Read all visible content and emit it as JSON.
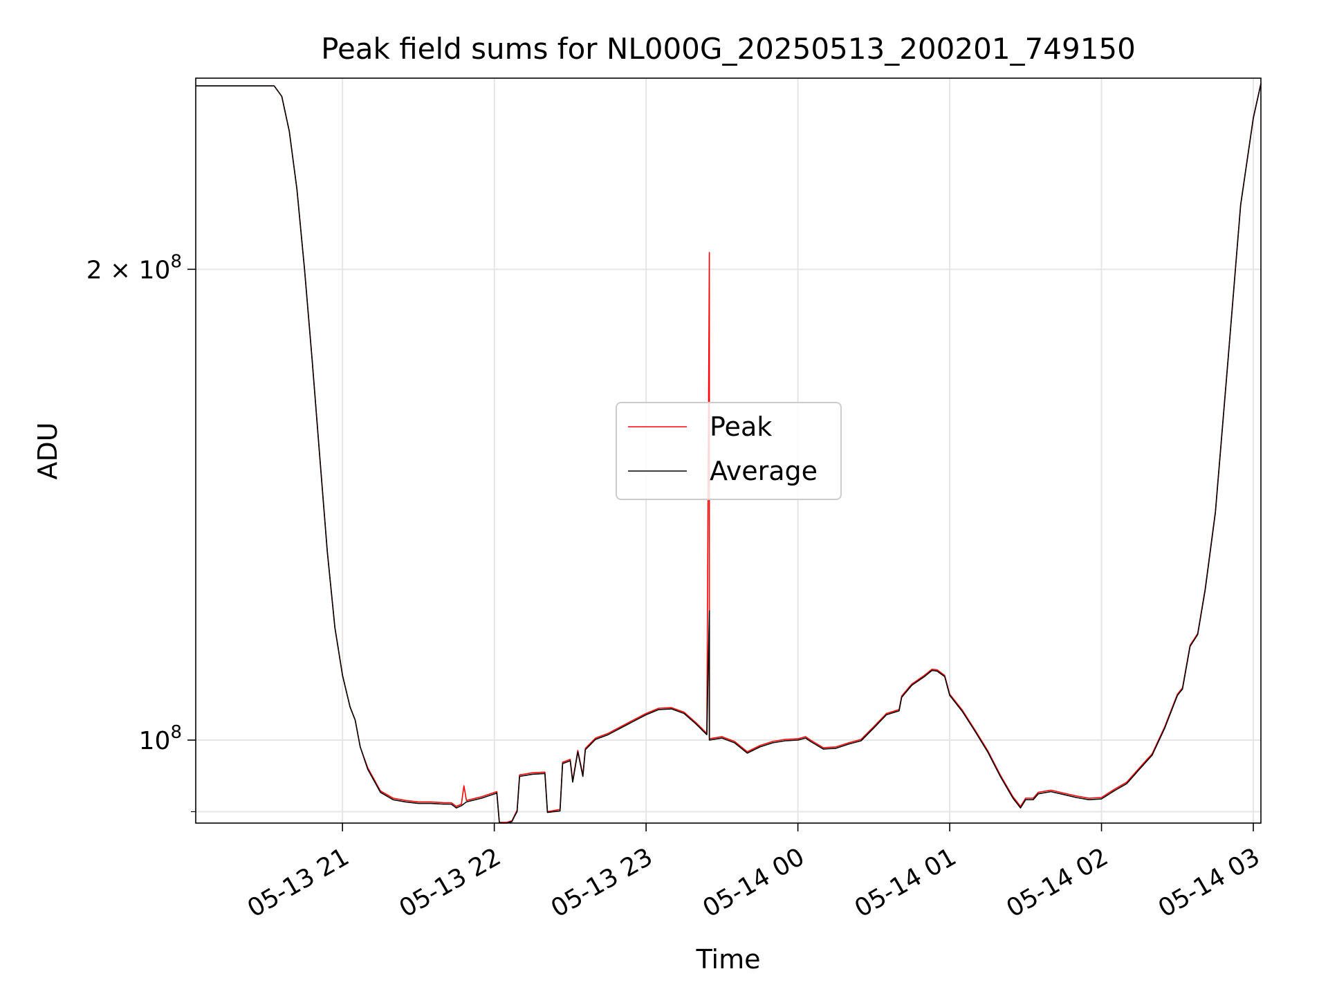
{
  "chart_data": {
    "type": "line",
    "title": "Peak field sums for NL000G_20250513_200201_749150",
    "xlabel": "Time",
    "ylabel": "ADU",
    "yscale": "log",
    "xlim": [
      "05-13 20:02",
      "05-14 03:03"
    ],
    "ylim": [
      88500000,
      265000000
    ],
    "grid": true,
    "legend_position": "center",
    "x_ticks": [
      {
        "t": "05-13 21:00",
        "label": "05-13 21"
      },
      {
        "t": "05-13 22:00",
        "label": "05-13 22"
      },
      {
        "t": "05-13 23:00",
        "label": "05-13 23"
      },
      {
        "t": "05-14 00:00",
        "label": "05-14 00"
      },
      {
        "t": "05-14 01:00",
        "label": "05-14 01"
      },
      {
        "t": "05-14 02:00",
        "label": "05-14 02"
      },
      {
        "t": "05-14 03:00",
        "label": "05-14 03"
      }
    ],
    "y_ticks": [
      {
        "value": 100000000,
        "base": "10",
        "exp": "8",
        "coef": ""
      },
      {
        "value": 200000000,
        "base": "10",
        "exp": "8",
        "coef": "2 × "
      }
    ],
    "y_minor_ticks": [
      90000000
    ],
    "series": [
      {
        "name": "Peak",
        "color": "#ff0000",
        "points": [
          [
            "05-13 20:02",
            262000000
          ],
          [
            "05-13 20:33",
            262000000
          ],
          [
            "05-13 20:36",
            258000000
          ],
          [
            "05-13 20:39",
            245000000
          ],
          [
            "05-13 20:42",
            225000000
          ],
          [
            "05-13 20:45",
            200000000
          ],
          [
            "05-13 20:48",
            175000000
          ],
          [
            "05-13 20:51",
            152000000
          ],
          [
            "05-13 20:54",
            132000000
          ],
          [
            "05-13 20:57",
            118000000
          ],
          [
            "05-13 21:00",
            110000000
          ],
          [
            "05-13 21:03",
            105000000
          ],
          [
            "05-13 21:05",
            103000000
          ],
          [
            "05-13 21:07",
            99000000
          ],
          [
            "05-13 21:10",
            96000000
          ],
          [
            "05-13 21:15",
            92800000
          ],
          [
            "05-13 21:20",
            91800000
          ],
          [
            "05-13 21:25",
            91500000
          ],
          [
            "05-13 21:30",
            91300000
          ],
          [
            "05-13 21:35",
            91300000
          ],
          [
            "05-13 21:40",
            91200000
          ],
          [
            "05-13 21:43",
            91200000
          ],
          [
            "05-13 21:45",
            90700000
          ],
          [
            "05-13 21:47",
            91000000
          ],
          [
            "05-13 21:48",
            93500000
          ],
          [
            "05-13 21:49",
            91500000
          ],
          [
            "05-13 21:55",
            92000000
          ],
          [
            "05-13 22:01",
            92700000
          ],
          [
            "05-13 22:02",
            88600000
          ],
          [
            "05-13 22:05",
            88600000
          ],
          [
            "05-13 22:07",
            88800000
          ],
          [
            "05-13 22:08",
            89500000
          ],
          [
            "05-13 22:09",
            90200000
          ],
          [
            "05-13 22:10",
            95000000
          ],
          [
            "05-13 22:15",
            95300000
          ],
          [
            "05-13 22:20",
            95400000
          ],
          [
            "05-13 22:21",
            90000000
          ],
          [
            "05-13 22:26",
            90300000
          ],
          [
            "05-13 22:27",
            96800000
          ],
          [
            "05-13 22:30",
            97200000
          ],
          [
            "05-13 22:31",
            94200000
          ],
          [
            "05-13 22:33",
            98500000
          ],
          [
            "05-13 22:35",
            95000000
          ],
          [
            "05-13 22:36",
            98800000
          ],
          [
            "05-13 22:40",
            100300000
          ],
          [
            "05-13 22:45",
            101000000
          ],
          [
            "05-13 22:50",
            102000000
          ],
          [
            "05-13 22:55",
            103000000
          ],
          [
            "05-13 23:00",
            104000000
          ],
          [
            "05-13 23:05",
            104800000
          ],
          [
            "05-13 23:10",
            104900000
          ],
          [
            "05-13 23:15",
            104200000
          ],
          [
            "05-13 23:20",
            102500000
          ],
          [
            "05-13 23:24",
            101000000
          ],
          [
            "05-13 23:25",
            205000000
          ],
          [
            "05-13 23:25",
            100200000
          ],
          [
            "05-13 23:30",
            100500000
          ],
          [
            "05-13 23:35",
            99800000
          ],
          [
            "05-13 23:40",
            98300000
          ],
          [
            "05-13 23:45",
            99200000
          ],
          [
            "05-13 23:50",
            99800000
          ],
          [
            "05-13 23:55",
            100100000
          ],
          [
            "05-14 00:00",
            100200000
          ],
          [
            "05-14 00:03",
            100500000
          ],
          [
            "05-14 00:05",
            100000000
          ],
          [
            "05-14 00:10",
            98900000
          ],
          [
            "05-14 00:15",
            99000000
          ],
          [
            "05-14 00:20",
            99600000
          ],
          [
            "05-14 00:25",
            100100000
          ],
          [
            "05-14 00:30",
            102000000
          ],
          [
            "05-14 00:35",
            104000000
          ],
          [
            "05-14 00:40",
            104600000
          ],
          [
            "05-14 00:41",
            106700000
          ],
          [
            "05-14 00:45",
            108600000
          ],
          [
            "05-14 00:50",
            110000000
          ],
          [
            "05-14 00:53",
            111000000
          ],
          [
            "05-14 00:55",
            110900000
          ],
          [
            "05-14 00:58",
            110000000
          ],
          [
            "05-14 01:00",
            107000000
          ],
          [
            "05-14 01:05",
            104500000
          ],
          [
            "05-14 01:10",
            101500000
          ],
          [
            "05-14 01:15",
            98500000
          ],
          [
            "05-14 01:20",
            95000000
          ],
          [
            "05-14 01:25",
            92000000
          ],
          [
            "05-14 01:28",
            90700000
          ],
          [
            "05-14 01:30",
            91800000
          ],
          [
            "05-14 01:33",
            91800000
          ],
          [
            "05-14 01:35",
            92600000
          ],
          [
            "05-14 01:40",
            92900000
          ],
          [
            "05-14 01:45",
            92500000
          ],
          [
            "05-14 01:50",
            92100000
          ],
          [
            "05-14 01:55",
            91800000
          ],
          [
            "05-14 02:00",
            91900000
          ],
          [
            "05-14 02:05",
            93000000
          ],
          [
            "05-14 02:10",
            94000000
          ],
          [
            "05-14 02:15",
            96000000
          ],
          [
            "05-14 02:20",
            98000000
          ],
          [
            "05-14 02:25",
            102000000
          ],
          [
            "05-14 02:30",
            107000000
          ],
          [
            "05-14 02:32",
            108000000
          ],
          [
            "05-14 02:35",
            115000000
          ],
          [
            "05-14 02:38",
            117000000
          ],
          [
            "05-14 02:41",
            125000000
          ],
          [
            "05-14 02:45",
            140000000
          ],
          [
            "05-14 02:50",
            175000000
          ],
          [
            "05-14 02:55",
            220000000
          ],
          [
            "05-14 03:00",
            250000000
          ],
          [
            "05-14 03:03",
            263000000
          ]
        ]
      },
      {
        "name": "Average",
        "color": "#000000",
        "points": [
          [
            "05-13 20:02",
            262000000
          ],
          [
            "05-13 20:33",
            262000000
          ],
          [
            "05-13 20:36",
            258000000
          ],
          [
            "05-13 20:39",
            245000000
          ],
          [
            "05-13 20:42",
            225000000
          ],
          [
            "05-13 20:45",
            200000000
          ],
          [
            "05-13 20:48",
            175000000
          ],
          [
            "05-13 20:51",
            152000000
          ],
          [
            "05-13 20:54",
            132000000
          ],
          [
            "05-13 20:57",
            118000000
          ],
          [
            "05-13 21:00",
            110000000
          ],
          [
            "05-13 21:03",
            105000000
          ],
          [
            "05-13 21:05",
            103000000
          ],
          [
            "05-13 21:07",
            99000000
          ],
          [
            "05-13 21:10",
            95800000
          ],
          [
            "05-13 21:15",
            92600000
          ],
          [
            "05-13 21:20",
            91600000
          ],
          [
            "05-13 21:25",
            91300000
          ],
          [
            "05-13 21:30",
            91100000
          ],
          [
            "05-13 21:35",
            91100000
          ],
          [
            "05-13 21:40",
            91000000
          ],
          [
            "05-13 21:43",
            91000000
          ],
          [
            "05-13 21:45",
            90500000
          ],
          [
            "05-13 21:47",
            90800000
          ],
          [
            "05-13 21:49",
            91300000
          ],
          [
            "05-13 21:55",
            91800000
          ],
          [
            "05-13 22:01",
            92500000
          ],
          [
            "05-13 22:02",
            88500000
          ],
          [
            "05-13 22:05",
            88500000
          ],
          [
            "05-13 22:07",
            88700000
          ],
          [
            "05-13 22:08",
            89400000
          ],
          [
            "05-13 22:09",
            90000000
          ],
          [
            "05-13 22:10",
            94800000
          ],
          [
            "05-13 22:15",
            95100000
          ],
          [
            "05-13 22:20",
            95200000
          ],
          [
            "05-13 22:21",
            89900000
          ],
          [
            "05-13 22:26",
            90100000
          ],
          [
            "05-13 22:27",
            96600000
          ],
          [
            "05-13 22:30",
            97000000
          ],
          [
            "05-13 22:31",
            94000000
          ],
          [
            "05-13 22:33",
            98300000
          ],
          [
            "05-13 22:35",
            94800000
          ],
          [
            "05-13 22:36",
            98600000
          ],
          [
            "05-13 22:40",
            100100000
          ],
          [
            "05-13 22:45",
            100800000
          ],
          [
            "05-13 22:50",
            101800000
          ],
          [
            "05-13 22:55",
            102800000
          ],
          [
            "05-13 23:00",
            103800000
          ],
          [
            "05-13 23:05",
            104600000
          ],
          [
            "05-13 23:10",
            104700000
          ],
          [
            "05-13 23:15",
            104000000
          ],
          [
            "05-13 23:20",
            102300000
          ],
          [
            "05-13 23:24",
            100800000
          ],
          [
            "05-13 23:25",
            121000000
          ],
          [
            "05-13 23:25",
            100000000
          ],
          [
            "05-13 23:30",
            100300000
          ],
          [
            "05-13 23:35",
            99600000
          ],
          [
            "05-13 23:40",
            98100000
          ],
          [
            "05-13 23:45",
            99000000
          ],
          [
            "05-13 23:50",
            99600000
          ],
          [
            "05-13 23:55",
            99900000
          ],
          [
            "05-14 00:00",
            100000000
          ],
          [
            "05-14 00:03",
            100300000
          ],
          [
            "05-14 00:05",
            99800000
          ],
          [
            "05-14 00:10",
            98700000
          ],
          [
            "05-14 00:15",
            98800000
          ],
          [
            "05-14 00:20",
            99400000
          ],
          [
            "05-14 00:25",
            99900000
          ],
          [
            "05-14 00:30",
            101800000
          ],
          [
            "05-14 00:35",
            103800000
          ],
          [
            "05-14 00:40",
            104400000
          ],
          [
            "05-14 00:41",
            106500000
          ],
          [
            "05-14 00:45",
            108400000
          ],
          [
            "05-14 00:50",
            109800000
          ],
          [
            "05-14 00:53",
            110800000
          ],
          [
            "05-14 00:55",
            110700000
          ],
          [
            "05-14 00:58",
            109800000
          ],
          [
            "05-14 01:00",
            106800000
          ],
          [
            "05-14 01:05",
            104300000
          ],
          [
            "05-14 01:10",
            101300000
          ],
          [
            "05-14 01:15",
            98300000
          ],
          [
            "05-14 01:20",
            94800000
          ],
          [
            "05-14 01:25",
            91800000
          ],
          [
            "05-14 01:28",
            90500000
          ],
          [
            "05-14 01:30",
            91600000
          ],
          [
            "05-14 01:33",
            91600000
          ],
          [
            "05-14 01:35",
            92400000
          ],
          [
            "05-14 01:40",
            92700000
          ],
          [
            "05-14 01:45",
            92300000
          ],
          [
            "05-14 01:50",
            91900000
          ],
          [
            "05-14 01:55",
            91600000
          ],
          [
            "05-14 02:00",
            91700000
          ],
          [
            "05-14 02:05",
            92800000
          ],
          [
            "05-14 02:10",
            93800000
          ],
          [
            "05-14 02:15",
            95800000
          ],
          [
            "05-14 02:20",
            97800000
          ],
          [
            "05-14 02:25",
            101800000
          ],
          [
            "05-14 02:30",
            106800000
          ],
          [
            "05-14 02:32",
            107800000
          ],
          [
            "05-14 02:35",
            114800000
          ],
          [
            "05-14 02:38",
            116800000
          ],
          [
            "05-14 02:41",
            124800000
          ],
          [
            "05-14 02:45",
            139800000
          ],
          [
            "05-14 02:50",
            174800000
          ],
          [
            "05-14 02:55",
            219800000
          ],
          [
            "05-14 03:00",
            249800000
          ],
          [
            "05-14 03:03",
            262800000
          ]
        ]
      }
    ]
  }
}
